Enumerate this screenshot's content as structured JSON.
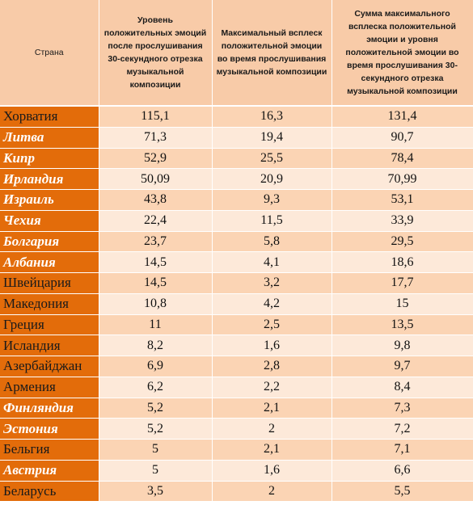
{
  "header": {
    "country": "Страна",
    "col1": "Уровень положительных эмоций после прослушивания 30-секундного отрезка музыкальной композиции",
    "col2": "Максимальный всплеск положительной эмоции во время прослушивания музыкальной композиции",
    "col3": "Сумма максимального всплеска положительной эмоции и уровня положительной эмоции во время прослушивания 30-секундного отрезка музыкальной композиции"
  },
  "rows": [
    {
      "country": "Хорватия",
      "emphasis": false,
      "v1": "115,1",
      "v2": "16,3",
      "v3": "131,4"
    },
    {
      "country": "Литва",
      "emphasis": true,
      "v1": "71,3",
      "v2": "19,4",
      "v3": "90,7"
    },
    {
      "country": "Кипр",
      "emphasis": true,
      "v1": "52,9",
      "v2": "25,5",
      "v3": "78,4"
    },
    {
      "country": "Ирландия",
      "emphasis": true,
      "v1": "50,09",
      "v2": "20,9",
      "v3": "70,99"
    },
    {
      "country": "Израиль",
      "emphasis": true,
      "v1": "43,8",
      "v2": "9,3",
      "v3": "53,1"
    },
    {
      "country": "Чехия",
      "emphasis": true,
      "v1": "22,4",
      "v2": "11,5",
      "v3": "33,9"
    },
    {
      "country": "Болгария",
      "emphasis": true,
      "v1": "23,7",
      "v2": "5,8",
      "v3": "29,5"
    },
    {
      "country": "Албания",
      "emphasis": true,
      "v1": "14,5",
      "v2": "4,1",
      "v3": "18,6"
    },
    {
      "country": "Швейцария",
      "emphasis": false,
      "v1": "14,5",
      "v2": "3,2",
      "v3": "17,7"
    },
    {
      "country": "Македония",
      "emphasis": false,
      "v1": "10,8",
      "v2": "4,2",
      "v3": "15"
    },
    {
      "country": "Греция",
      "emphasis": false,
      "v1": "11",
      "v2": "2,5",
      "v3": "13,5"
    },
    {
      "country": "Исландия",
      "emphasis": false,
      "v1": "8,2",
      "v2": "1,6",
      "v3": "9,8"
    },
    {
      "country": "Азербайджан",
      "emphasis": false,
      "v1": "6,9",
      "v2": "2,8",
      "v3": "9,7"
    },
    {
      "country": "Армения",
      "emphasis": false,
      "v1": "6,2",
      "v2": "2,2",
      "v3": "8,4"
    },
    {
      "country": "Финляндия",
      "emphasis": true,
      "v1": "5,2",
      "v2": "2,1",
      "v3": "7,3"
    },
    {
      "country": "Эстония",
      "emphasis": true,
      "v1": "5,2",
      "v2": "2",
      "v3": "7,2"
    },
    {
      "country": "Бельгия",
      "emphasis": false,
      "v1": "5",
      "v2": "2,1",
      "v3": "7,1"
    },
    {
      "country": "Австрия",
      "emphasis": true,
      "v1": "5",
      "v2": "1,6",
      "v3": "6,6"
    },
    {
      "country": "Беларусь",
      "emphasis": false,
      "v1": "3,5",
      "v2": "2",
      "v3": "5,5"
    }
  ],
  "colors": {
    "country_cell": "#e36c0a",
    "header": "#f8cba8",
    "row_odd": "#fbd4b4",
    "row_even": "#fde9d9"
  }
}
